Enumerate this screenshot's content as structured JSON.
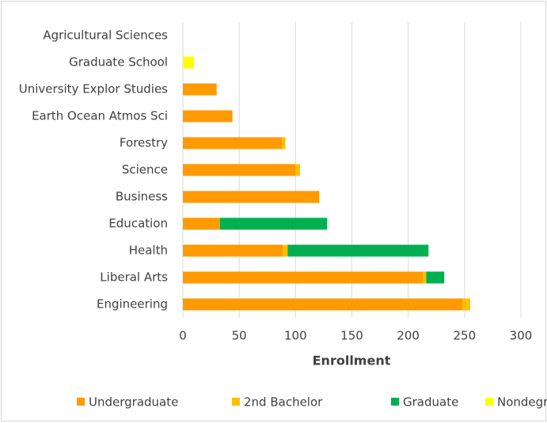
{
  "chart_data": {
    "type": "stacked-bar-horizontal",
    "categories": [
      "Engineering",
      "Liberal Arts",
      "Health",
      "Education",
      "Business",
      "Science",
      "Forestry",
      "Earth Ocean Atmos Sci",
      "University Explor Studies",
      "Graduate School",
      "Agricultural Sciences"
    ],
    "series": [
      {
        "name": "Undergraduate",
        "color": "#ff9a00",
        "values": [
          248,
          213,
          89,
          33,
          121,
          100,
          88,
          44,
          30,
          0,
          0
        ]
      },
      {
        "name": "2nd Bachelor",
        "color": "#ffc000",
        "values": [
          7,
          3,
          4,
          0,
          0,
          4,
          3,
          0,
          0,
          0,
          0
        ]
      },
      {
        "name": "Graduate",
        "color": "#00b050",
        "values": [
          0,
          16,
          125,
          95,
          0,
          0,
          0,
          0,
          0,
          0,
          0
        ]
      },
      {
        "name": "Nondegree",
        "color": "#ffff00",
        "values": [
          0,
          0,
          0,
          0,
          0,
          0,
          0,
          0,
          0,
          10,
          0
        ]
      }
    ],
    "xlabel": "Enrollment",
    "xlim": [
      0,
      300
    ],
    "xticks": [
      0,
      50,
      100,
      150,
      200,
      250,
      300
    ],
    "grid": true,
    "legend": "bottom"
  }
}
